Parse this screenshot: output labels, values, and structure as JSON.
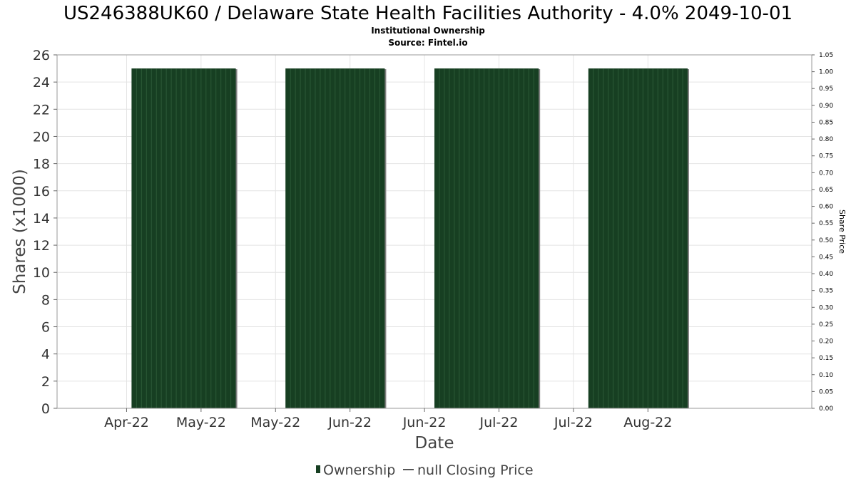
{
  "colors": {
    "bar_fill": "#173f22",
    "bar_stripe": "#2c5a37",
    "bar_shadow": "#808080",
    "grid": "#e4e4e4",
    "plot_border": "#999999",
    "legend_line": "#555555"
  },
  "chart_data": {
    "type": "bar",
    "title": "US246388UK60 / Delaware State Health Facilities Authority - 4.0% 2049-10-01",
    "subtitle": "Institutional Ownership",
    "source": "Source: Fintel.io",
    "xlabel": "Date",
    "ylabel": "Shares (x1000)",
    "y2label": "Share Price",
    "ylim": [
      0,
      26
    ],
    "y2lim": [
      0,
      1.05
    ],
    "xlim": [
      "2022-04-04",
      "2022-09-03"
    ],
    "yticks": [
      0,
      2,
      4,
      6,
      8,
      10,
      12,
      14,
      16,
      18,
      20,
      22,
      24,
      26
    ],
    "y2ticks": [
      "0.00",
      "0.05",
      "0.10",
      "0.15",
      "0.20",
      "0.25",
      "0.30",
      "0.35",
      "0.40",
      "0.45",
      "0.50",
      "0.55",
      "0.60",
      "0.65",
      "0.70",
      "0.75",
      "0.80",
      "0.85",
      "0.90",
      "0.95",
      "1.00",
      "1.05"
    ],
    "xticks": [
      {
        "label": "Apr-22",
        "date": "2022-04-18"
      },
      {
        "label": "May-22",
        "date": "2022-05-03"
      },
      {
        "label": "May-22",
        "date": "2022-05-18"
      },
      {
        "label": "Jun-22",
        "date": "2022-06-02"
      },
      {
        "label": "Jun-22",
        "date": "2022-06-17"
      },
      {
        "label": "Jul-22",
        "date": "2022-07-02"
      },
      {
        "label": "Jul-22",
        "date": "2022-07-17"
      },
      {
        "label": "Aug-22",
        "date": "2022-08-01"
      }
    ],
    "series": [
      {
        "name": "Ownership",
        "type": "bar",
        "segments": [
          {
            "start": "2022-04-19",
            "end": "2022-05-10",
            "value": 25
          },
          {
            "start": "2022-05-20",
            "end": "2022-06-09",
            "value": 25
          },
          {
            "start": "2022-06-19",
            "end": "2022-07-10",
            "value": 25
          },
          {
            "start": "2022-07-20",
            "end": "2022-08-09",
            "value": 25
          }
        ]
      },
      {
        "name": "null Closing Price",
        "type": "line",
        "values": []
      }
    ],
    "grid": true,
    "legend_position": "bottom-center"
  }
}
